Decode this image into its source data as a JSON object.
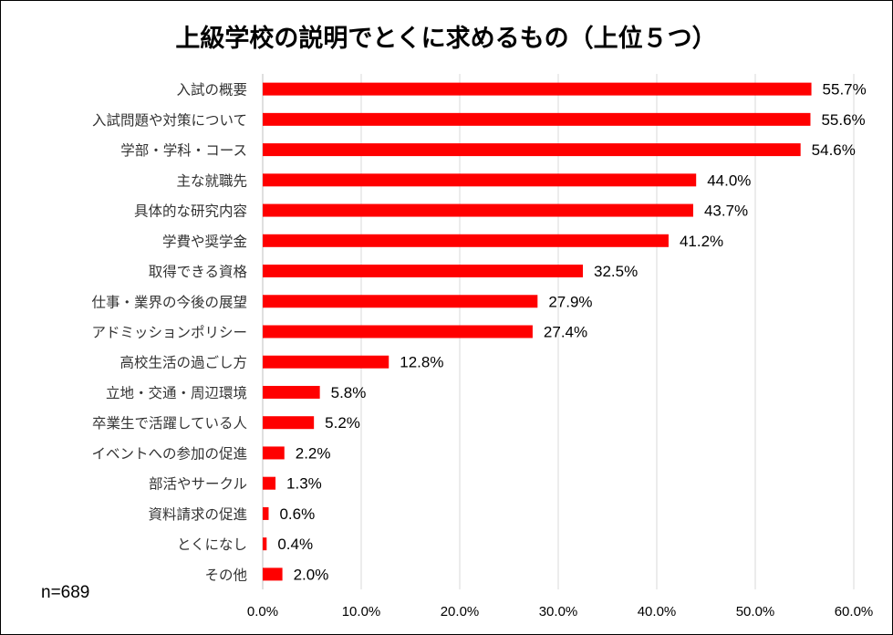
{
  "chart_data": {
    "type": "bar",
    "orientation": "horizontal",
    "title": "上級学校の説明でとくに求めるもの（上位５つ）",
    "sample_size": "n=689",
    "categories": [
      "入試の概要",
      "入試問題や対策について",
      "学部・学科・コース",
      "主な就職先",
      "具体的な研究内容",
      "学費や奨学金",
      "取得できる資格",
      "仕事・業界の今後の展望",
      "アドミッションポリシー",
      "高校生活の過ごし方",
      "立地・交通・周辺環境",
      "卒業生で活躍している人",
      "イベントへの参加の促進",
      "部活やサークル",
      "資料請求の促進",
      "とくになし",
      "その他"
    ],
    "values": [
      55.7,
      55.6,
      54.6,
      44.0,
      43.7,
      41.2,
      32.5,
      27.9,
      27.4,
      12.8,
      5.8,
      5.2,
      2.2,
      1.3,
      0.6,
      0.4,
      2.0
    ],
    "value_labels": [
      "55.7%",
      "55.6%",
      "54.6%",
      "44.0%",
      "43.7%",
      "41.2%",
      "32.5%",
      "27.9%",
      "27.4%",
      "12.8%",
      "5.8%",
      "5.2%",
      "2.2%",
      "1.3%",
      "0.6%",
      "0.4%",
      "2.0%"
    ],
    "xlim": [
      0,
      60
    ],
    "x_ticks": [
      0,
      10,
      20,
      30,
      40,
      50,
      60
    ],
    "x_tick_labels": [
      "0.0%",
      "10.0%",
      "20.0%",
      "30.0%",
      "40.0%",
      "50.0%",
      "60.0%"
    ],
    "grid": true,
    "legend": "none",
    "bar_color": "#ff0000"
  }
}
